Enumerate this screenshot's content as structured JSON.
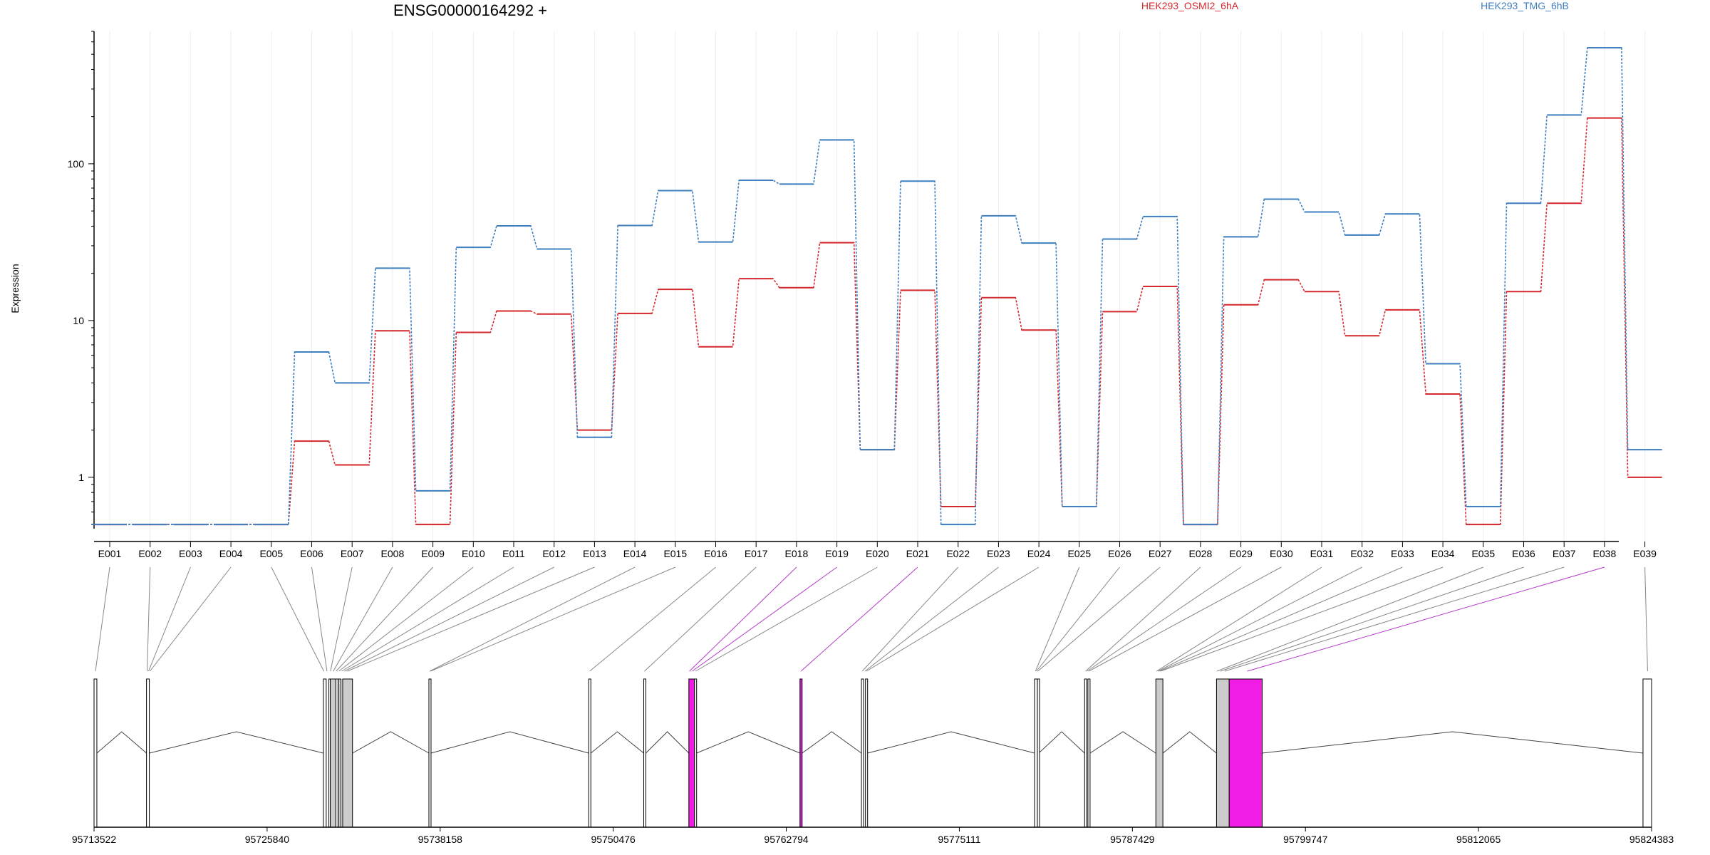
{
  "chart_data": {
    "type": "line",
    "title": "ENSG00000164292 +",
    "ylabel": "Expression",
    "xlabel": "",
    "y_scale": "log",
    "ylim": [
      0.47,
      700
    ],
    "y_ticks": [
      1,
      10,
      100
    ],
    "y_tick_labels": [
      "1",
      "10",
      "100"
    ],
    "legend_placement": "top-right",
    "categories": [
      "E001",
      "E002",
      "E003",
      "E004",
      "E005",
      "E006",
      "E007",
      "E008",
      "E009",
      "E010",
      "E011",
      "E012",
      "E013",
      "E014",
      "E015",
      "E016",
      "E017",
      "E018",
      "E019",
      "E020",
      "E021",
      "E022",
      "E023",
      "E024",
      "E025",
      "E026",
      "E027",
      "E028",
      "E029",
      "E030",
      "E031",
      "E032",
      "E033",
      "E034",
      "E035",
      "E036",
      "E037",
      "E038",
      "E039"
    ],
    "series": [
      {
        "name": "HEK293_OSMI2_6hA",
        "color": "#d42a2f",
        "values": [
          0.5,
          0.5,
          0.5,
          0.5,
          0.5,
          1.7,
          1.2,
          8.6,
          0.5,
          8.4,
          11.5,
          11.0,
          2.0,
          11.1,
          15.8,
          6.8,
          18.5,
          16.2,
          31.4,
          1.5,
          15.6,
          0.65,
          14.0,
          8.7,
          0.65,
          11.4,
          16.5,
          0.5,
          12.6,
          18.2,
          15.3,
          8.0,
          11.7,
          3.4,
          0.5,
          15.3,
          56.0,
          196.0,
          1.0
        ]
      },
      {
        "name": "HEK293_TMG_6hB",
        "color": "#3f7fbf",
        "values": [
          0.5,
          0.5,
          0.5,
          0.5,
          0.5,
          6.3,
          4.0,
          21.6,
          0.82,
          29.3,
          40.2,
          28.6,
          1.8,
          40.4,
          67.5,
          31.7,
          78.5,
          74.2,
          142.0,
          1.5,
          77.5,
          0.5,
          46.6,
          31.2,
          0.65,
          33.1,
          46.1,
          0.5,
          34.2,
          59.5,
          49.3,
          35.1,
          47.9,
          5.3,
          0.65,
          56.0,
          205.0,
          550.0,
          1.5
        ]
      }
    ],
    "genome": {
      "start": 95713522,
      "end": 95824383,
      "coord_labels": [
        "95713522",
        "95725840",
        "95738158",
        "95750476",
        "95762794",
        "95775111",
        "95787429",
        "95799747",
        "95812065",
        "95824383"
      ],
      "exons": [
        {
          "start": 95713522,
          "end": 95713722,
          "fill": "#ffffff"
        },
        {
          "start": 95717256,
          "end": 95717456,
          "fill": "#ffffff"
        },
        {
          "start": 95729846,
          "end": 95730046,
          "fill": "#ffffff"
        },
        {
          "start": 95730236,
          "end": 95730336,
          "fill": "#ffffff"
        },
        {
          "start": 95730336,
          "end": 95730736,
          "fill": "#cccccc"
        },
        {
          "start": 95730736,
          "end": 95730836,
          "fill": "#ffffff"
        },
        {
          "start": 95730900,
          "end": 95731100,
          "fill": "#cccccc"
        },
        {
          "start": 95731217,
          "end": 95731917,
          "fill": "#cccccc"
        },
        {
          "start": 95737356,
          "end": 95737506,
          "fill": "#ffffff"
        },
        {
          "start": 95748731,
          "end": 95748881,
          "fill": "#ffffff"
        },
        {
          "start": 95752646,
          "end": 95752796,
          "fill": "#ffffff"
        },
        {
          "start": 95755859,
          "end": 95756259,
          "fill": "#f21de4"
        },
        {
          "start": 95756259,
          "end": 95756409,
          "fill": "#ffffff"
        },
        {
          "start": 95763768,
          "end": 95763918,
          "fill": "#f21de4"
        },
        {
          "start": 95768141,
          "end": 95768291,
          "fill": "#ffffff"
        },
        {
          "start": 95768430,
          "end": 95768580,
          "fill": "#ffffff"
        },
        {
          "start": 95780465,
          "end": 95780665,
          "fill": "#ffffff"
        },
        {
          "start": 95780665,
          "end": 95780765,
          "fill": "#ffffff"
        },
        {
          "start": 95784027,
          "end": 95784177,
          "fill": "#ffffff"
        },
        {
          "start": 95784263,
          "end": 95784413,
          "fill": "#ffffff"
        },
        {
          "start": 95789099,
          "end": 95789599,
          "fill": "#cccccc"
        },
        {
          "start": 95793418,
          "end": 95794318,
          "fill": "#cccccc"
        },
        {
          "start": 95794318,
          "end": 95796668,
          "fill": "#f21de4"
        },
        {
          "start": 95823772,
          "end": 95824383,
          "fill": "#ffffff"
        }
      ],
      "links": [
        {
          "exon": "E001",
          "pos": 95713622,
          "highlight": false
        },
        {
          "exon": "E002",
          "pos": 95717300,
          "highlight": false
        },
        {
          "exon": "E003",
          "pos": 95717400,
          "highlight": false
        },
        {
          "exon": "E004",
          "pos": 95717500,
          "highlight": false
        },
        {
          "exon": "E005",
          "pos": 95729880,
          "highlight": false
        },
        {
          "exon": "E006",
          "pos": 95730100,
          "highlight": false
        },
        {
          "exon": "E007",
          "pos": 95730350,
          "highlight": false
        },
        {
          "exon": "E008",
          "pos": 95730550,
          "highlight": false
        },
        {
          "exon": "E009",
          "pos": 95730750,
          "highlight": false
        },
        {
          "exon": "E010",
          "pos": 95730950,
          "highlight": false
        },
        {
          "exon": "E011",
          "pos": 95731150,
          "highlight": false
        },
        {
          "exon": "E012",
          "pos": 95731350,
          "highlight": false
        },
        {
          "exon": "E013",
          "pos": 95731550,
          "highlight": false
        },
        {
          "exon": "E014",
          "pos": 95737420,
          "highlight": false
        },
        {
          "exon": "E015",
          "pos": 95737480,
          "highlight": false
        },
        {
          "exon": "E016",
          "pos": 95748800,
          "highlight": false
        },
        {
          "exon": "E017",
          "pos": 95752700,
          "highlight": false
        },
        {
          "exon": "E018",
          "pos": 95755900,
          "highlight": true
        },
        {
          "exon": "E019",
          "pos": 95756100,
          "highlight": true
        },
        {
          "exon": "E020",
          "pos": 95756330,
          "highlight": false
        },
        {
          "exon": "E021",
          "pos": 95763840,
          "highlight": true
        },
        {
          "exon": "E022",
          "pos": 95768200,
          "highlight": false
        },
        {
          "exon": "E023",
          "pos": 95768400,
          "highlight": false
        },
        {
          "exon": "E024",
          "pos": 95768500,
          "highlight": false
        },
        {
          "exon": "E025",
          "pos": 95780530,
          "highlight": false
        },
        {
          "exon": "E026",
          "pos": 95780600,
          "highlight": false
        },
        {
          "exon": "E027",
          "pos": 95780700,
          "highlight": false
        },
        {
          "exon": "E028",
          "pos": 95784100,
          "highlight": false
        },
        {
          "exon": "E029",
          "pos": 95784200,
          "highlight": false
        },
        {
          "exon": "E030",
          "pos": 95784330,
          "highlight": false
        },
        {
          "exon": "E031",
          "pos": 95789150,
          "highlight": false
        },
        {
          "exon": "E032",
          "pos": 95789250,
          "highlight": false
        },
        {
          "exon": "E033",
          "pos": 95789350,
          "highlight": false
        },
        {
          "exon": "E034",
          "pos": 95789450,
          "highlight": false
        },
        {
          "exon": "E035",
          "pos": 95793450,
          "highlight": false
        },
        {
          "exon": "E036",
          "pos": 95793700,
          "highlight": false
        },
        {
          "exon": "E037",
          "pos": 95794000,
          "highlight": false
        },
        {
          "exon": "E038",
          "pos": 95795600,
          "highlight": true
        },
        {
          "exon": "E039",
          "pos": 95824100,
          "highlight": false
        }
      ]
    }
  }
}
